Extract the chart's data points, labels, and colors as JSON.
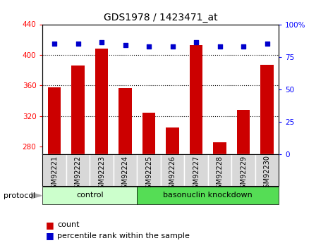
{
  "title": "GDS1978 / 1423471_at",
  "samples": [
    "GSM92221",
    "GSM92222",
    "GSM92223",
    "GSM92224",
    "GSM92225",
    "GSM92226",
    "GSM92227",
    "GSM92228",
    "GSM92229",
    "GSM92230"
  ],
  "counts": [
    358,
    386,
    408,
    357,
    324,
    305,
    413,
    286,
    328,
    387
  ],
  "percentile_ranks": [
    85,
    85,
    86,
    84,
    83,
    83,
    86,
    83,
    83,
    85
  ],
  "ylim_left": [
    270,
    440
  ],
  "ylim_right": [
    0,
    100
  ],
  "yticks_left": [
    280,
    320,
    360,
    400,
    440
  ],
  "yticks_right": [
    0,
    25,
    50,
    75,
    100
  ],
  "bar_color": "#cc0000",
  "dot_color": "#0000cc",
  "group_control_color": "#ccffcc",
  "group_knockdown_color": "#55dd55",
  "protocol_label": "protocol",
  "legend_count_label": "count",
  "legend_pct_label": "percentile rank within the sample",
  "legend_count_color": "#cc0000",
  "legend_pct_color": "#0000cc",
  "gridline_yticks": [
    320,
    360,
    400
  ],
  "tick_area_color": "#d8d8d8"
}
